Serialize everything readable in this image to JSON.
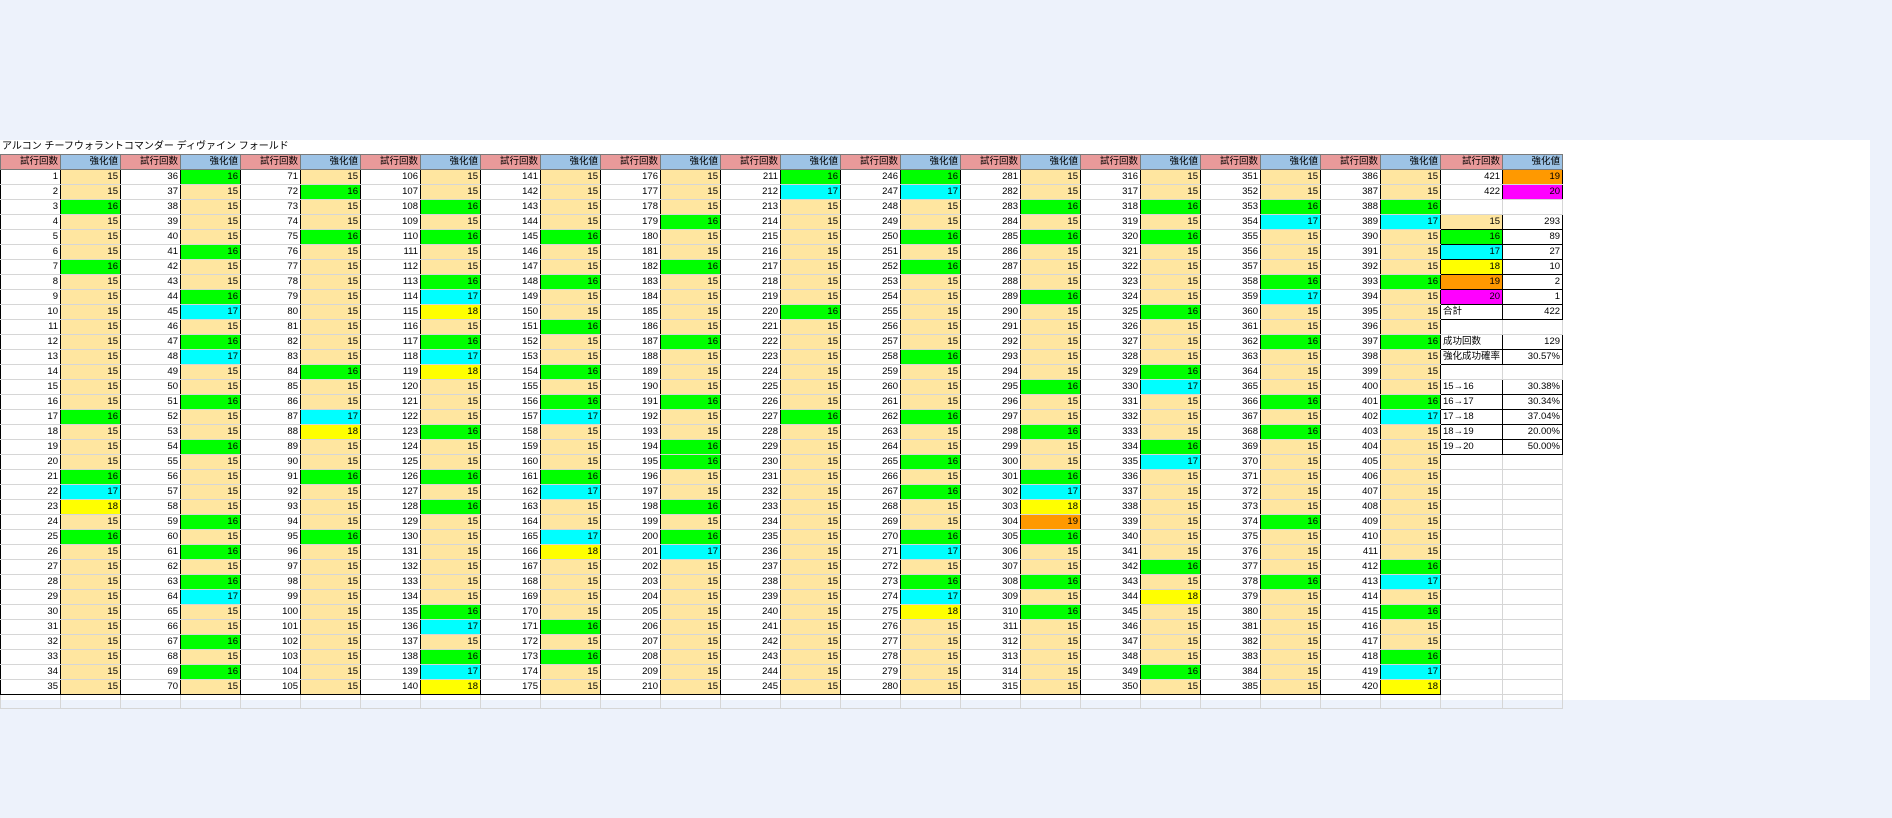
{
  "sheet_title": "アルコン チーフウォラントコマンダー ディヴァイン フォールド",
  "headers": {
    "trial": "試行回数",
    "value": "強化値"
  },
  "colors": {
    "15": "#ffe6a0",
    "16": "#00ff00",
    "17": "#00ffff",
    "18": "#ffff00",
    "19": "#ff9900",
    "20": "#ff00ff",
    "header_trial": "#e99a9a",
    "header_value": "#9dc3e6"
  },
  "columns": [
    {
      "start": 1,
      "values": [
        15,
        15,
        16,
        15,
        15,
        15,
        16,
        15,
        15,
        15,
        15,
        15,
        15,
        15,
        15,
        15,
        16,
        15,
        15,
        15,
        16,
        17,
        18,
        15,
        16,
        15,
        15,
        15,
        15,
        15,
        15,
        15,
        15,
        15,
        15
      ]
    },
    {
      "start": 36,
      "values": [
        16,
        15,
        15,
        15,
        15,
        16,
        15,
        15,
        16,
        17,
        15,
        16,
        17,
        15,
        15,
        16,
        15,
        15,
        16,
        15,
        15,
        15,
        15,
        16,
        15,
        16,
        15,
        16,
        17,
        15,
        15,
        16,
        15,
        16,
        15
      ]
    },
    {
      "start": 71,
      "values": [
        15,
        16,
        15,
        15,
        16,
        15,
        15,
        15,
        15,
        15,
        15,
        15,
        15,
        16,
        15,
        15,
        17,
        18,
        15,
        15,
        16,
        15,
        15,
        15,
        16,
        15,
        15,
        15,
        15,
        15,
        15,
        15,
        15,
        15,
        15
      ]
    },
    {
      "start": 106,
      "values": [
        15,
        15,
        16,
        15,
        16,
        15,
        15,
        16,
        17,
        18,
        15,
        16,
        17,
        18,
        15,
        15,
        15,
        16,
        15,
        15,
        16,
        15,
        16,
        15,
        15,
        15,
        15,
        15,
        15,
        16,
        17,
        15,
        16,
        17,
        18
      ]
    },
    {
      "start": 141,
      "values": [
        15,
        15,
        15,
        15,
        16,
        15,
        15,
        16,
        15,
        15,
        16,
        15,
        15,
        16,
        15,
        16,
        17,
        15,
        15,
        15,
        16,
        17,
        15,
        15,
        17,
        18,
        15,
        15,
        15,
        15,
        16,
        15,
        16,
        15,
        15
      ]
    },
    {
      "start": 176,
      "values": [
        15,
        15,
        15,
        16,
        15,
        15,
        16,
        15,
        15,
        15,
        15,
        16,
        15,
        15,
        15,
        16,
        15,
        15,
        16,
        16,
        15,
        15,
        16,
        15,
        16,
        17,
        15,
        15,
        15,
        15,
        15,
        15,
        15,
        15,
        15
      ]
    },
    {
      "start": 211,
      "values": [
        16,
        17,
        15,
        15,
        15,
        15,
        15,
        15,
        15,
        16,
        15,
        15,
        15,
        15,
        15,
        15,
        16,
        15,
        15,
        15,
        15,
        15,
        15,
        15,
        15,
        15,
        15,
        15,
        15,
        15,
        15,
        15,
        15,
        15,
        15
      ]
    },
    {
      "start": 246,
      "values": [
        16,
        17,
        15,
        15,
        16,
        15,
        16,
        15,
        15,
        15,
        15,
        15,
        16,
        15,
        15,
        15,
        16,
        15,
        15,
        16,
        15,
        16,
        15,
        15,
        16,
        17,
        15,
        16,
        17,
        18,
        15,
        15,
        15,
        15,
        15
      ]
    },
    {
      "start": 281,
      "values": [
        15,
        15,
        16,
        15,
        16,
        15,
        15,
        15,
        16,
        15,
        15,
        15,
        15,
        15,
        16,
        15,
        15,
        16,
        15,
        15,
        16,
        17,
        18,
        19,
        16,
        15,
        15,
        16,
        15,
        16,
        15,
        15,
        15,
        15,
        15
      ]
    },
    {
      "start": 316,
      "values": [
        15,
        15,
        16,
        15,
        16,
        15,
        15,
        15,
        15,
        16,
        15,
        15,
        15,
        16,
        17,
        15,
        15,
        15,
        16,
        17,
        15,
        15,
        15,
        15,
        15,
        15,
        16,
        15,
        18,
        15,
        15,
        15,
        15,
        16,
        15
      ]
    },
    {
      "start": 351,
      "values": [
        15,
        15,
        16,
        17,
        15,
        15,
        15,
        16,
        17,
        15,
        15,
        16,
        15,
        15,
        15,
        16,
        15,
        16,
        15,
        15,
        15,
        15,
        15,
        16,
        15,
        15,
        15,
        16,
        15,
        15,
        15,
        15,
        15,
        15,
        15
      ]
    },
    {
      "start": 386,
      "values": [
        15,
        15,
        16,
        17,
        15,
        15,
        15,
        16,
        15,
        15,
        15,
        16,
        15,
        15,
        15,
        16,
        17,
        15,
        15,
        15,
        15,
        15,
        15,
        15,
        15,
        15,
        16,
        17,
        15,
        16,
        15,
        15,
        16,
        17,
        18
      ]
    },
    {
      "start": 421,
      "values": [
        19,
        20
      ]
    }
  ],
  "stats": {
    "distribution": [
      {
        "value": "15",
        "count": "293"
      },
      {
        "value": "16",
        "count": "89"
      },
      {
        "value": "17",
        "count": "27"
      },
      {
        "value": "18",
        "count": "10"
      },
      {
        "value": "19",
        "count": "2"
      },
      {
        "value": "20",
        "count": "1"
      }
    ],
    "total_label": "合計",
    "total": "422",
    "success_label": "成功回数",
    "success": "129",
    "rate_label": "強化成功確率",
    "rate": "30.57%",
    "transitions": [
      {
        "label": "15→16",
        "rate": "30.38%"
      },
      {
        "label": "16→17",
        "rate": "30.34%"
      },
      {
        "label": "17→18",
        "rate": "37.04%"
      },
      {
        "label": "18→19",
        "rate": "20.00%"
      },
      {
        "label": "19→20",
        "rate": "50.00%"
      }
    ]
  }
}
